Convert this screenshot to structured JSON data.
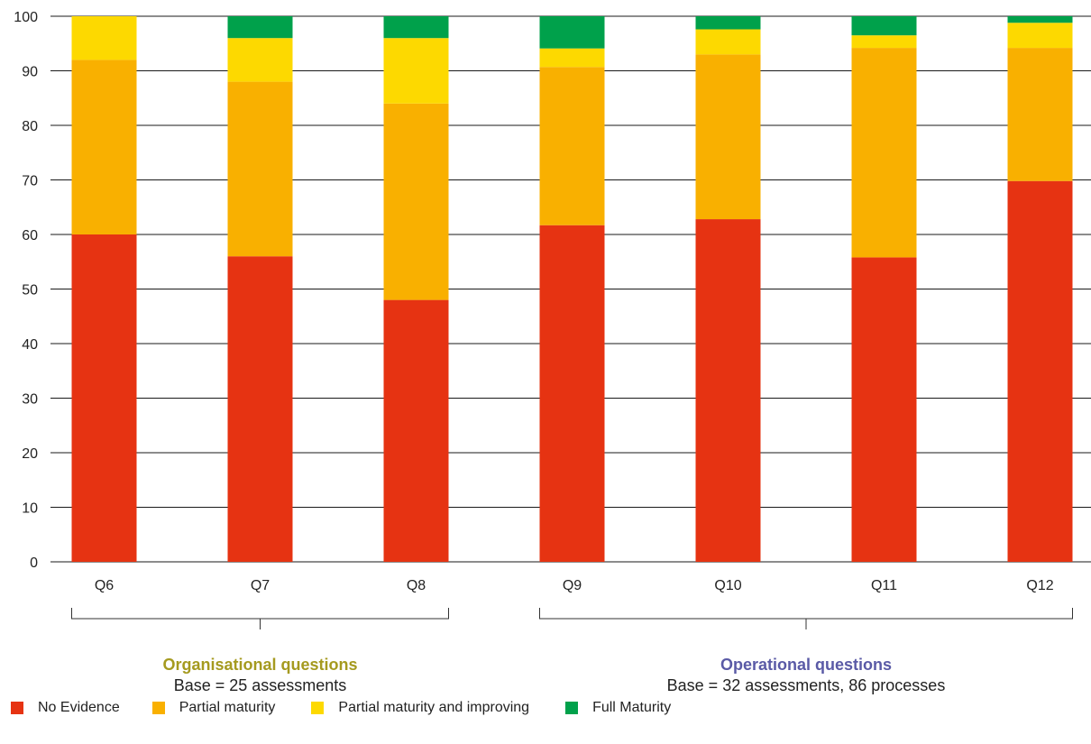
{
  "chart_data": {
    "type": "bar",
    "stacked": true,
    "categories": [
      "Q6",
      "Q7",
      "Q8",
      "Q9",
      "Q10",
      "Q11",
      "Q12"
    ],
    "series": [
      {
        "name": "No Evidence",
        "color": "#e63312",
        "values": [
          60,
          56,
          48,
          61.7,
          62.8,
          55.8,
          69.8
        ]
      },
      {
        "name": "Partial maturity",
        "color": "#f9b000",
        "values": [
          32,
          32,
          36,
          29,
          30.2,
          38.4,
          24.4
        ]
      },
      {
        "name": "Partial maturity and improving",
        "color": "#fdd900",
        "values": [
          8,
          8,
          12,
          3.4,
          4.6,
          2.3,
          4.6
        ]
      },
      {
        "name": "Full Maturity",
        "color": "#00a14b",
        "values": [
          0,
          4,
          4,
          5.9,
          2.4,
          3.5,
          1.2
        ]
      }
    ],
    "ylim": [
      0,
      100
    ],
    "yticks": [
      0,
      10,
      20,
      30,
      40,
      50,
      60,
      70,
      80,
      90,
      100
    ],
    "grid": true,
    "legend_position": "bottom-left",
    "groups": [
      {
        "title": "Organisational questions",
        "subtitle": "Base = 25 assessments",
        "title_color": "#a59a1f",
        "categories": [
          "Q6",
          "Q7",
          "Q8"
        ]
      },
      {
        "title": "Operational questions",
        "subtitle": "Base = 32 assessments, 86 processes",
        "title_color": "#5a5aa6",
        "categories": [
          "Q9",
          "Q10",
          "Q11",
          "Q12"
        ]
      }
    ]
  }
}
